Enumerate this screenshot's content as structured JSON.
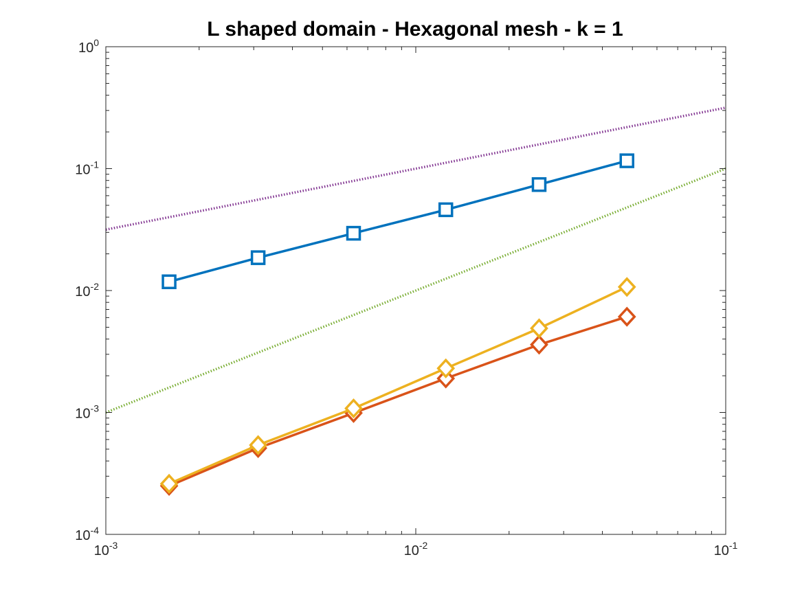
{
  "chart_data": {
    "type": "line",
    "title": "L shaped domain - Hexagonal mesh - k = 1",
    "xlabel": "",
    "ylabel": "",
    "x_scale": "log",
    "y_scale": "log",
    "xlim": [
      0.001,
      0.1
    ],
    "ylim": [
      0.0001,
      1
    ],
    "grid": false,
    "x_ticks": [
      {
        "value": 0.001,
        "base": "10",
        "exp": "-3"
      },
      {
        "value": 0.01,
        "base": "10",
        "exp": "-2"
      },
      {
        "value": 0.1,
        "base": "10",
        "exp": "-1"
      }
    ],
    "y_ticks": [
      {
        "value": 0.0001,
        "base": "10",
        "exp": "-4"
      },
      {
        "value": 0.001,
        "base": "10",
        "exp": "-3"
      },
      {
        "value": 0.01,
        "base": "10",
        "exp": "-2"
      },
      {
        "value": 0.1,
        "base": "10",
        "exp": "-1"
      },
      {
        "value": 1,
        "base": "10",
        "exp": "0"
      }
    ],
    "series": [
      {
        "color": "#0072BD",
        "marker": "square",
        "style": "solid",
        "x": [
          0.0016,
          0.0031,
          0.0063,
          0.0125,
          0.025,
          0.048
        ],
        "y": [
          0.0118,
          0.0186,
          0.0295,
          0.046,
          0.074,
          0.116
        ]
      },
      {
        "color": "#D95319",
        "marker": "diamond",
        "style": "solid",
        "x": [
          0.0016,
          0.0031,
          0.0063,
          0.0125,
          0.025,
          0.048
        ],
        "y": [
          0.00025,
          0.00051,
          0.00099,
          0.0019,
          0.0036,
          0.0061
        ]
      },
      {
        "color": "#EDB120",
        "marker": "diamond",
        "style": "solid",
        "x": [
          0.0016,
          0.0031,
          0.0063,
          0.0125,
          0.025,
          0.048
        ],
        "y": [
          0.00026,
          0.00054,
          0.00108,
          0.0023,
          0.0049,
          0.0107
        ]
      },
      {
        "color": "#7E2F8E",
        "marker": "none",
        "style": "dotted",
        "x": [
          0.001,
          0.1
        ],
        "y": [
          0.0316,
          0.316
        ]
      },
      {
        "color": "#77AC30",
        "marker": "none",
        "style": "dotted",
        "x": [
          0.001,
          0.1
        ],
        "y": [
          0.001,
          0.1
        ]
      }
    ]
  }
}
